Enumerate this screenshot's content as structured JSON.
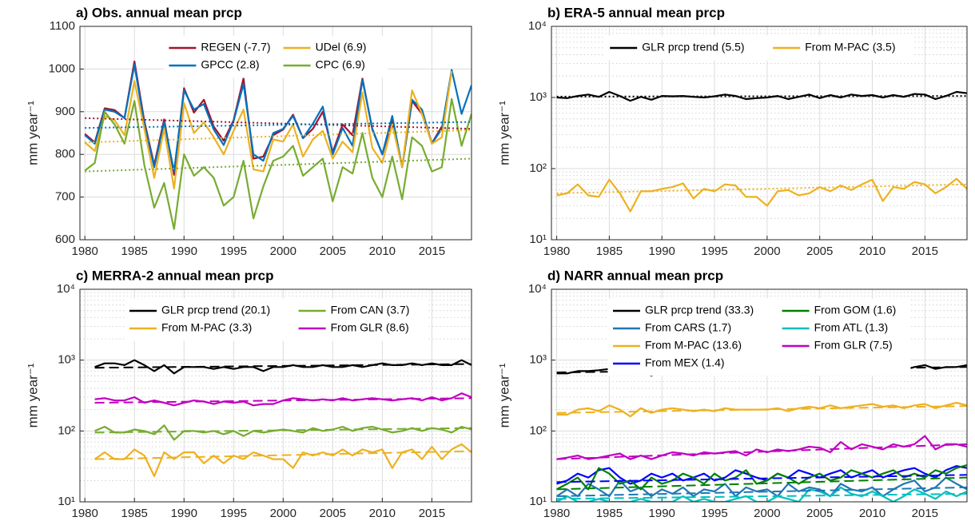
{
  "chart_data": [
    {
      "type": "line",
      "title": "a) Obs. annual mean prcp",
      "y_label": "mm year⁻¹",
      "yscale": "linear",
      "grid": true,
      "legend_rows": 2,
      "legend": "top",
      "trend_style": "dotted",
      "x": [
        1980,
        1981,
        1982,
        1983,
        1984,
        1985,
        1986,
        1987,
        1988,
        1989,
        1990,
        1991,
        1992,
        1993,
        1994,
        1995,
        1996,
        1997,
        1998,
        1999,
        2000,
        2001,
        2002,
        2003,
        2004,
        2005,
        2006,
        2007,
        2008,
        2009,
        2010,
        2011,
        2012,
        2013,
        2014,
        2015,
        2016,
        2017,
        2018,
        2019
      ],
      "xlim": [
        1979.5,
        2019
      ],
      "xticks": [
        1980,
        1985,
        1990,
        1995,
        2000,
        2005,
        2010,
        2015
      ],
      "ylim": [
        600,
        1100
      ],
      "yticks": [
        600,
        700,
        800,
        900,
        1000,
        1100
      ],
      "series": [
        {
          "name": "REGEN (-7.7)",
          "color": "#a2142f",
          "trend": [
            885,
            860
          ],
          "values": [
            848,
            828,
            908,
            904,
            885,
            1018,
            878,
            775,
            882,
            752,
            955,
            898,
            928,
            865,
            832,
            880,
            978,
            790,
            795,
            845,
            858,
            893,
            838,
            860,
            900,
            805,
            870,
            845,
            978,
            858,
            800,
            880,
            770,
            925,
            895,
            826,
            865,
            null,
            null,
            null
          ]
        },
        {
          "name": "GPCC (2.8)",
          "color": "#0072bd",
          "trend": [
            862,
            876
          ],
          "values": [
            845,
            825,
            905,
            900,
            885,
            1010,
            872,
            770,
            875,
            760,
            950,
            905,
            918,
            858,
            822,
            878,
            965,
            800,
            785,
            850,
            860,
            890,
            838,
            872,
            912,
            800,
            862,
            820,
            975,
            860,
            800,
            890,
            770,
            928,
            905,
            825,
            860,
            998,
            895,
            962
          ]
        },
        {
          "name": "UDel (6.9)",
          "color": "#edb120",
          "trend": [
            828,
            857
          ],
          "values": [
            828,
            808,
            890,
            880,
            845,
            972,
            860,
            745,
            860,
            720,
            920,
            850,
            875,
            840,
            800,
            855,
            905,
            765,
            760,
            835,
            830,
            870,
            795,
            835,
            855,
            790,
            830,
            805,
            945,
            815,
            780,
            870,
            770,
            950,
            895,
            825,
            840,
            995,
            null,
            null
          ]
        },
        {
          "name": "CPC (6.9)",
          "color": "#77ac30",
          "trend": [
            760,
            790
          ],
          "values": [
            762,
            780,
            900,
            870,
            825,
            925,
            775,
            675,
            733,
            625,
            800,
            750,
            770,
            745,
            680,
            700,
            785,
            650,
            725,
            785,
            795,
            820,
            750,
            770,
            790,
            690,
            770,
            755,
            850,
            745,
            700,
            795,
            695,
            840,
            820,
            760,
            770,
            930,
            820,
            895
          ]
        }
      ]
    },
    {
      "type": "line",
      "title": "b) ERA-5 annual mean prcp",
      "y_label": "mm year⁻¹",
      "yscale": "log",
      "grid": true,
      "minor_grid": true,
      "legend_rows": 1,
      "legend": "top",
      "trend_style": "dotted",
      "x": [
        1980,
        1981,
        1982,
        1983,
        1984,
        1985,
        1986,
        1987,
        1988,
        1989,
        1990,
        1991,
        1992,
        1993,
        1994,
        1995,
        1996,
        1997,
        1998,
        1999,
        2000,
        2001,
        2002,
        2003,
        2004,
        2005,
        2006,
        2007,
        2008,
        2009,
        2010,
        2011,
        2012,
        2013,
        2014,
        2015,
        2016,
        2017,
        2018,
        2019
      ],
      "xlim": [
        1979.5,
        2019
      ],
      "xticks": [
        1980,
        1985,
        1990,
        1995,
        2000,
        2005,
        2010,
        2015
      ],
      "ylim": [
        10,
        10000
      ],
      "yticks": [
        {
          "value": 10,
          "label": "10¹"
        },
        {
          "value": 100,
          "label": "10²"
        },
        {
          "value": 1000,
          "label": "10³"
        },
        {
          "value": 10000,
          "label": "10⁴"
        }
      ],
      "series": [
        {
          "name": "GLR prcp trend (5.5)",
          "color": "#000000",
          "trend": [
            1030,
            1050
          ],
          "values": [
            1000,
            980,
            1050,
            1100,
            1020,
            1200,
            1050,
            900,
            1020,
            930,
            1050,
            1040,
            1050,
            1020,
            1000,
            1040,
            1100,
            1050,
            950,
            980,
            1000,
            1050,
            950,
            1020,
            1100,
            980,
            1080,
            1000,
            1100,
            1050,
            1080,
            1000,
            1080,
            1020,
            1120,
            1100,
            950,
            1050,
            1200,
            1150
          ]
        },
        {
          "name": "From M-PAC (3.5)",
          "color": "#edb120",
          "trend": [
            45,
            60
          ],
          "values": [
            42,
            45,
            60,
            42,
            40,
            70,
            45,
            25,
            48,
            48,
            52,
            55,
            62,
            38,
            52,
            48,
            60,
            58,
            40,
            40,
            30,
            48,
            50,
            42,
            45,
            55,
            48,
            58,
            50,
            60,
            70,
            35,
            55,
            52,
            65,
            60,
            45,
            55,
            72,
            52
          ]
        }
      ]
    },
    {
      "type": "line",
      "title": "c) MERRA-2 annual mean prcp",
      "y_label": "mm year⁻¹",
      "yscale": "log",
      "grid": true,
      "minor_grid": true,
      "legend_rows": 2,
      "legend": "top",
      "trend_style": "dashed",
      "x": [
        1981,
        1982,
        1983,
        1984,
        1985,
        1986,
        1987,
        1988,
        1989,
        1990,
        1991,
        1992,
        1993,
        1994,
        1995,
        1996,
        1997,
        1998,
        1999,
        2000,
        2001,
        2002,
        2003,
        2004,
        2005,
        2006,
        2007,
        2008,
        2009,
        2010,
        2011,
        2012,
        2013,
        2014,
        2015,
        2016,
        2017,
        2018,
        2019
      ],
      "xlim": [
        1979.5,
        2019
      ],
      "xticks": [
        1980,
        1985,
        1990,
        1995,
        2000,
        2005,
        2010,
        2015
      ],
      "ylim": [
        10,
        10000
      ],
      "yticks": [
        {
          "value": 10,
          "label": "10¹"
        },
        {
          "value": 100,
          "label": "10²"
        },
        {
          "value": 1000,
          "label": "10³"
        },
        {
          "value": 10000,
          "label": "10⁴"
        }
      ],
      "series": [
        {
          "name": "GLR prcp trend (20.1)",
          "color": "#000000",
          "trend": [
            780,
            880
          ],
          "values": [
            800,
            900,
            900,
            850,
            1000,
            850,
            700,
            850,
            650,
            800,
            800,
            800,
            750,
            800,
            750,
            800,
            800,
            700,
            800,
            800,
            850,
            800,
            800,
            850,
            800,
            800,
            850,
            800,
            850,
            900,
            850,
            850,
            900,
            850,
            900,
            850,
            850,
            1000,
            850
          ]
        },
        {
          "name": "From M-PAC (3.3)",
          "color": "#edb120",
          "trend": [
            40,
            52
          ],
          "values": [
            40,
            50,
            40,
            40,
            55,
            45,
            23,
            50,
            40,
            50,
            50,
            35,
            45,
            35,
            45,
            40,
            50,
            45,
            40,
            40,
            30,
            50,
            45,
            50,
            45,
            55,
            45,
            55,
            50,
            55,
            30,
            50,
            55,
            40,
            60,
            40,
            55,
            65,
            50
          ]
        },
        {
          "name": "From CAN (3.7)",
          "color": "#77ac30",
          "trend": [
            95,
            110
          ],
          "values": [
            100,
            115,
            95,
            95,
            105,
            100,
            90,
            120,
            75,
            100,
            100,
            95,
            100,
            90,
            100,
            85,
            100,
            95,
            100,
            105,
            100,
            95,
            110,
            100,
            105,
            115,
            100,
            110,
            115,
            105,
            95,
            100,
            110,
            100,
            110,
            105,
            95,
            115,
            105
          ]
        },
        {
          "name": "From GLR (8.6)",
          "color": "#c000c0",
          "trend": [
            250,
            290
          ],
          "values": [
            280,
            290,
            270,
            270,
            300,
            250,
            270,
            250,
            230,
            250,
            270,
            260,
            240,
            260,
            250,
            260,
            230,
            240,
            240,
            270,
            290,
            280,
            270,
            280,
            270,
            290,
            270,
            280,
            290,
            280,
            270,
            280,
            290,
            270,
            300,
            270,
            290,
            340,
            300
          ]
        }
      ]
    },
    {
      "type": "line",
      "title": "d) NARR annual mean prcp",
      "y_label": "mm year⁻¹",
      "yscale": "log",
      "grid": true,
      "minor_grid": true,
      "legend_rows": 4,
      "legend": "top",
      "trend_style": "dashed",
      "x": [
        1980,
        1981,
        1982,
        1983,
        1984,
        1985,
        1986,
        1987,
        1988,
        1989,
        1990,
        1991,
        1992,
        1993,
        1994,
        1995,
        1996,
        1997,
        1998,
        1999,
        2000,
        2001,
        2002,
        2003,
        2004,
        2005,
        2006,
        2007,
        2008,
        2009,
        2010,
        2011,
        2012,
        2013,
        2014,
        2015,
        2016,
        2017,
        2018,
        2019
      ],
      "xlim": [
        1979.5,
        2019
      ],
      "xticks": [
        1980,
        1985,
        1990,
        1995,
        2000,
        2005,
        2010,
        2015
      ],
      "ylim": [
        10,
        10000
      ],
      "yticks": [
        {
          "value": 10,
          "label": "10¹"
        },
        {
          "value": 100,
          "label": "10²"
        },
        {
          "value": 1000,
          "label": "10³"
        },
        {
          "value": 10000,
          "label": "10⁴"
        }
      ],
      "series": [
        {
          "name": "GLR prcp trend (33.3)",
          "color": "#000000",
          "trend": [
            670,
            800
          ],
          "values": [
            650,
            650,
            700,
            700,
            720,
            750,
            700,
            620,
            700,
            600,
            700,
            720,
            700,
            700,
            720,
            750,
            700,
            700,
            680,
            700,
            750,
            750,
            700,
            750,
            750,
            750,
            800,
            720,
            750,
            750,
            800,
            750,
            800,
            720,
            800,
            850,
            750,
            800,
            800,
            850
          ]
        },
        {
          "name": "From CARS (1.7)",
          "color": "#1f77b4",
          "trend": [
            12,
            16
          ],
          "values": [
            12,
            15,
            12,
            18,
            15,
            12,
            20,
            14,
            16,
            12,
            15,
            13,
            16,
            12,
            15,
            14,
            18,
            12,
            16,
            14,
            15,
            12,
            18,
            14,
            16,
            15,
            12,
            18,
            15,
            14,
            16,
            12,
            15,
            18,
            20,
            14,
            16,
            22,
            18,
            15
          ]
        },
        {
          "name": "From M-PAC (13.6)",
          "color": "#edb120",
          "trend": [
            180,
            225
          ],
          "values": [
            170,
            170,
            200,
            210,
            190,
            230,
            200,
            160,
            210,
            180,
            200,
            210,
            200,
            190,
            200,
            190,
            210,
            200,
            200,
            200,
            200,
            210,
            190,
            210,
            220,
            210,
            230,
            210,
            220,
            230,
            240,
            220,
            230,
            210,
            230,
            240,
            210,
            230,
            250,
            230
          ]
        },
        {
          "name": "From MEX (1.4)",
          "color": "#0000ff",
          "trend": [
            19,
            24
          ],
          "values": [
            18,
            20,
            25,
            22,
            28,
            30,
            22,
            18,
            20,
            25,
            22,
            25,
            20,
            22,
            25,
            20,
            22,
            28,
            25,
            22,
            20,
            25,
            22,
            28,
            25,
            22,
            25,
            28,
            22,
            25,
            28,
            22,
            25,
            28,
            30,
            25,
            22,
            28,
            32,
            30
          ]
        },
        {
          "name": "From GOM (1.6)",
          "color": "#008000",
          "trend": [
            15,
            22
          ],
          "values": [
            15,
            18,
            22,
            15,
            30,
            25,
            18,
            20,
            15,
            22,
            18,
            20,
            25,
            22,
            18,
            25,
            20,
            22,
            28,
            18,
            20,
            25,
            22,
            18,
            22,
            25,
            20,
            22,
            28,
            25,
            22,
            25,
            28,
            22,
            25,
            22,
            28,
            25,
            30,
            33
          ]
        },
        {
          "name": "From ATL (1.3)",
          "color": "#00bfbf",
          "trend": [
            11,
            13
          ],
          "values": [
            10,
            12,
            10,
            10,
            11,
            10,
            10,
            10,
            11,
            10,
            10,
            10,
            12,
            10,
            11,
            10,
            10,
            11,
            12,
            10,
            10,
            12,
            11,
            10,
            15,
            14,
            12,
            16,
            13,
            12,
            14,
            12,
            10,
            12,
            15,
            13,
            11,
            14,
            12,
            14
          ]
        },
        {
          "name": "From GLR (7.5)",
          "color": "#c000c0",
          "trend": [
            40,
            65
          ],
          "values": [
            40,
            42,
            45,
            40,
            42,
            45,
            48,
            40,
            45,
            40,
            45,
            50,
            48,
            45,
            50,
            48,
            50,
            52,
            45,
            55,
            50,
            55,
            52,
            55,
            60,
            58,
            50,
            70,
            55,
            65,
            60,
            55,
            65,
            60,
            65,
            85,
            55,
            65,
            65,
            60
          ]
        }
      ]
    }
  ]
}
